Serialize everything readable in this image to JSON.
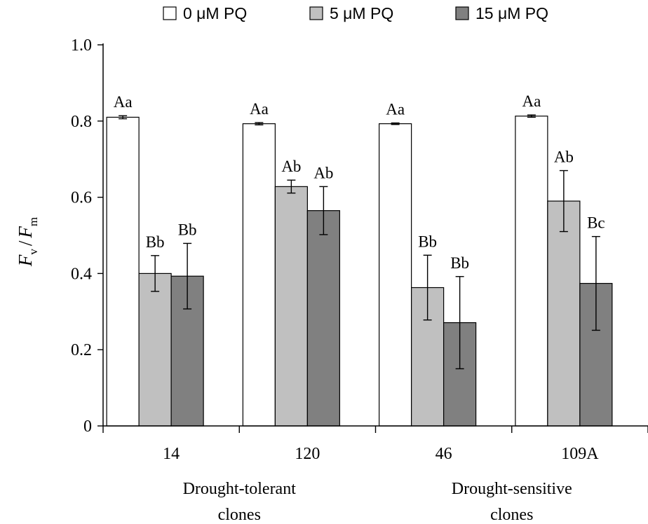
{
  "chart_data": {
    "type": "bar",
    "categories": [
      "14",
      "120",
      "46",
      "109A"
    ],
    "groups": [
      {
        "label_line1": "Drought-tolerant",
        "label_line2": "clones"
      },
      {
        "label_line1": "Drought-sensitive",
        "label_line2": "clones"
      }
    ],
    "series": [
      {
        "name": "0 μM PQ",
        "color": "#ffffff",
        "values": [
          0.81,
          0.793,
          0.793,
          0.813
        ],
        "errors": [
          0.004,
          0.003,
          0.002,
          0.003
        ],
        "labels": [
          "Aa",
          "Aa",
          "Aa",
          "Aa"
        ]
      },
      {
        "name": "5 μM PQ",
        "color": "#c0c0c0",
        "values": [
          0.4,
          0.628,
          0.363,
          0.59
        ],
        "errors": [
          0.047,
          0.017,
          0.085,
          0.08
        ],
        "labels": [
          "Bb",
          "Ab",
          "Bb",
          "Ab"
        ]
      },
      {
        "name": "15 μM PQ",
        "color": "#808080",
        "values": [
          0.393,
          0.565,
          0.271,
          0.374
        ],
        "errors": [
          0.086,
          0.063,
          0.121,
          0.123
        ],
        "labels": [
          "Bb",
          "Ab",
          "Bb",
          "Bc"
        ]
      }
    ],
    "ylabel_main1": "F",
    "ylabel_sub1": "v",
    "ylabel_sep": "/",
    "ylabel_main2": "F",
    "ylabel_sub2": "m",
    "ylim": [
      0,
      1.0
    ],
    "yticks": [
      0,
      0.2,
      0.4,
      0.6,
      0.8,
      1.0
    ],
    "ytick_labels": [
      "0",
      "0.2",
      "0.4",
      "0.6",
      "0.8",
      "1.0"
    ],
    "legend_position": "top",
    "grid": false
  }
}
